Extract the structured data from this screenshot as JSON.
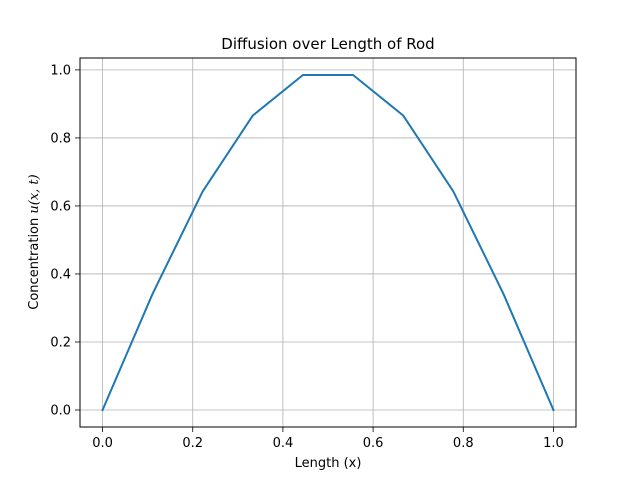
{
  "chart_data": {
    "type": "line",
    "title": "Diffusion over Length of Rod",
    "xlabel": "Length (x)",
    "ylabel_text": "Concentration ",
    "ylabel_math": "u(x, t)",
    "xlim": [
      -0.05,
      1.05
    ],
    "ylim": [
      -0.05,
      1.035
    ],
    "grid": true,
    "line_color": "#1f77b4",
    "x_ticks": [
      0.0,
      0.2,
      0.4,
      0.6,
      0.8,
      1.0
    ],
    "y_ticks": [
      0.0,
      0.2,
      0.4,
      0.6,
      0.8,
      1.0
    ],
    "x_tick_labels": [
      "0.0",
      "0.2",
      "0.4",
      "0.6",
      "0.8",
      "1.0"
    ],
    "y_tick_labels": [
      "0.0",
      "0.2",
      "0.4",
      "0.6",
      "0.8",
      "1.0"
    ],
    "series": [
      {
        "x": [
          0.0,
          0.1111,
          0.2222,
          0.3333,
          0.4444,
          0.5556,
          0.6667,
          0.7778,
          0.8889,
          1.0
        ],
        "y": [
          0.0,
          0.342,
          0.643,
          0.866,
          0.985,
          0.985,
          0.866,
          0.643,
          0.342,
          0.0
        ]
      }
    ]
  }
}
